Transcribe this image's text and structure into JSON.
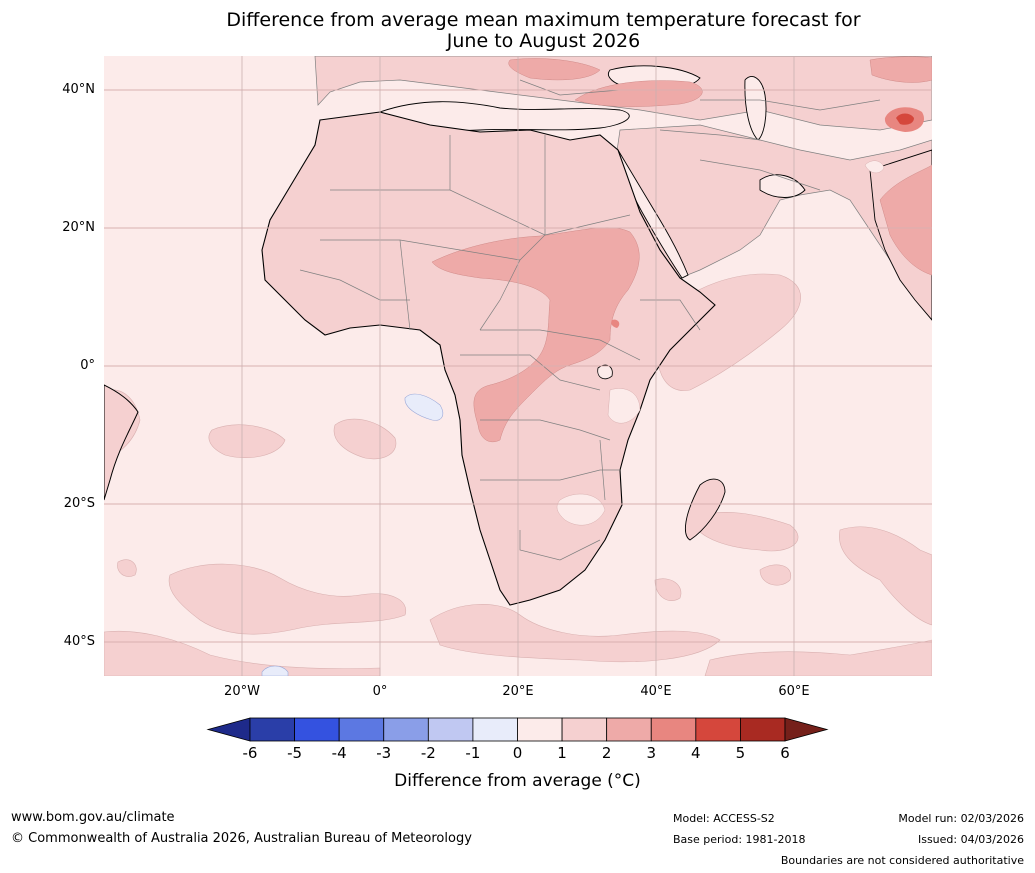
{
  "title": {
    "line1": "Difference from average mean maximum temperature forecast for",
    "line2": "June to August 2026"
  },
  "map": {
    "region": "Africa and Middle East",
    "lat_labels": [
      "40°N",
      "20°N",
      "0°",
      "20°S",
      "40°S"
    ],
    "lon_labels": [
      "20°W",
      "0°",
      "20°E",
      "40°E",
      "60°E"
    ],
    "colors": {
      "ocean_base": "#fcebea",
      "land_base": "#f7d4d4",
      "warm_2_3": "#eeaaa8",
      "warm_3_4": "#e88680",
      "hot_spot": "#d5473c",
      "cool_neg1_0": "#e8ecfa",
      "grid": "#d9b0b0",
      "coast": "#000000",
      "border": "#808080"
    }
  },
  "colorbar": {
    "ticks": [
      "-6",
      "-5",
      "-4",
      "-3",
      "-2",
      "-1",
      "0",
      "1",
      "2",
      "3",
      "4",
      "5",
      "6"
    ],
    "colors": [
      "#1e2a8a",
      "#2a3ea8",
      "#3452e0",
      "#5c78e2",
      "#8a9ee8",
      "#c0c8f2",
      "#e8ecfa",
      "#fcebea",
      "#f5d0d0",
      "#eeaaa8",
      "#e88680",
      "#d5473c",
      "#a92a22",
      "#75201a"
    ],
    "label": "Difference from average ($^\\circ$C)",
    "label_display": "Difference from average (°C)"
  },
  "footer": {
    "website": "www.bom.gov.au/climate",
    "copyright": "© Commonwealth of Australia 2026, Australian Bureau of Meteorology",
    "model": "Model: ACCESS-S2",
    "base_period": "Base period: 1981-2018",
    "model_run": "Model run: 02/03/2026",
    "issued": "Issued: 04/03/2026",
    "disclaimer": "Boundaries are not considered authoritative"
  }
}
